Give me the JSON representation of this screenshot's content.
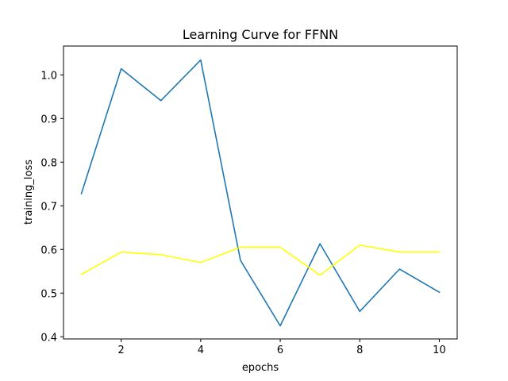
{
  "chart_data": {
    "type": "line",
    "title": "Learning Curve for FFNN",
    "xlabel": "epochs",
    "ylabel": "training_loss",
    "xlim": [
      0.55,
      10.45
    ],
    "ylim": [
      0.395,
      1.066
    ],
    "xticks": [
      2,
      4,
      6,
      8,
      10
    ],
    "yticks": [
      0.4,
      0.5,
      0.6,
      0.7,
      0.8,
      0.9,
      1.0
    ],
    "ytick_labels": [
      "0.4",
      "0.5",
      "0.6",
      "0.7",
      "0.8",
      "0.9",
      "1.0"
    ],
    "grid": false,
    "x": [
      1,
      2,
      3,
      4,
      5,
      6,
      7,
      8,
      9,
      10
    ],
    "series": [
      {
        "color": "#1f77b4",
        "values": [
          0.728,
          1.014,
          0.941,
          1.034,
          0.575,
          0.425,
          0.613,
          0.458,
          0.555,
          0.502
        ]
      },
      {
        "color": "#ffff00",
        "values": [
          0.543,
          0.594,
          0.588,
          0.57,
          0.605,
          0.605,
          0.541,
          0.61,
          0.594,
          0.594
        ]
      }
    ]
  }
}
